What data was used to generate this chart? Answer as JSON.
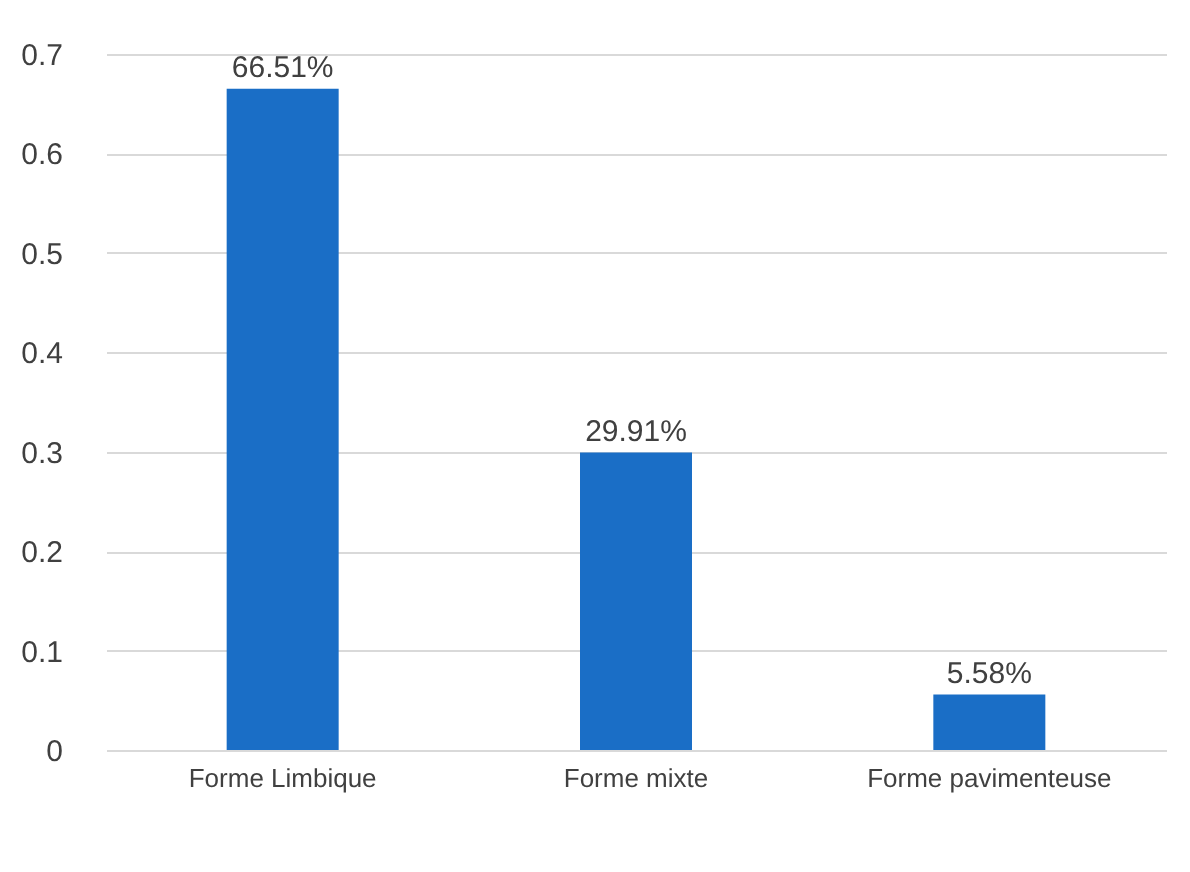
{
  "chart_data": {
    "type": "bar",
    "categories": [
      "Forme Limbique",
      "Forme mixte",
      "Forme pavimenteuse"
    ],
    "values": [
      0.6651,
      0.2991,
      0.0558
    ],
    "value_labels": [
      "66.51%",
      "29.91%",
      "5.58%"
    ],
    "color": "#1a6ec6",
    "ylim": [
      0,
      0.7
    ],
    "yticks": [
      0,
      0.1,
      0.2,
      0.3,
      0.4,
      0.5,
      0.6,
      0.7
    ],
    "grid": "y"
  }
}
